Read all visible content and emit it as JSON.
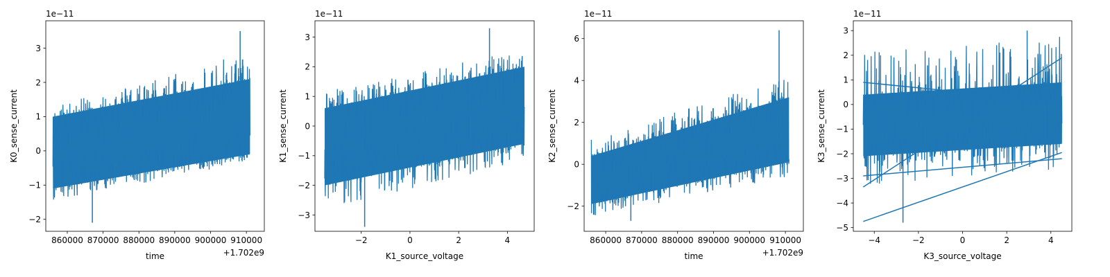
{
  "line_color": "#1f77b4",
  "chart_data": [
    {
      "type": "line",
      "title": "",
      "xlabel": "time",
      "ylabel": "K0_sense_current",
      "x_offset_text": "+1.702e9",
      "y_exponent_text": "1e−11",
      "xlim": [
        854000,
        915000
      ],
      "ylim": [
        -2.35,
        3.8
      ],
      "x_ticks": [
        860000,
        870000,
        880000,
        890000,
        900000,
        910000
      ],
      "x_tick_labels": [
        "860000",
        "870000",
        "880000",
        "890000",
        "900000",
        "910000"
      ],
      "y_ticks": [
        -2,
        -1,
        0,
        1,
        2,
        3
      ],
      "y_tick_labels": [
        "−2",
        "−1",
        "0",
        "1",
        "2",
        "3"
      ],
      "grid": false,
      "series": [
        {
          "x": [
            856000,
            911000
          ],
          "band_lower": [
            -1.1,
            -0.1
          ],
          "band_upper": [
            1.0,
            2.1
          ],
          "peak_lower": [
            -1.5,
            -0.3
          ],
          "peak_upper": [
            1.3,
            2.9
          ],
          "min_value": -2.1,
          "max_value": 3.5
        }
      ]
    },
    {
      "type": "line",
      "title": "",
      "xlabel": "K1_source_voltage",
      "ylabel": "K1_sense_current",
      "x_offset_text": "",
      "y_exponent_text": "1e−11",
      "xlim": [
        -3.9,
        5.1
      ],
      "ylim": [
        -3.55,
        3.55
      ],
      "x_ticks": [
        -2,
        0,
        2,
        4
      ],
      "x_tick_labels": [
        "−2",
        "0",
        "2",
        "4"
      ],
      "y_ticks": [
        -3,
        -2,
        -1,
        0,
        1,
        2,
        3
      ],
      "y_tick_labels": [
        "−3",
        "−2",
        "−1",
        "0",
        "1",
        "2",
        "3"
      ],
      "grid": false,
      "series": [
        {
          "x": [
            -3.5,
            4.7
          ],
          "band_lower": [
            -2.0,
            -0.6
          ],
          "band_upper": [
            0.6,
            2.0
          ],
          "peak_lower": [
            -2.8,
            -1.2
          ],
          "peak_upper": [
            1.2,
            2.6
          ],
          "min_value": -3.4,
          "max_value": 3.3
        }
      ]
    },
    {
      "type": "line",
      "title": "",
      "xlabel": "time",
      "ylabel": "K2_sense_current",
      "x_offset_text": "+1.702e9",
      "y_exponent_text": "1e−11",
      "xlim": [
        854000,
        915000
      ],
      "ylim": [
        -3.2,
        6.85
      ],
      "x_ticks": [
        860000,
        870000,
        880000,
        890000,
        900000,
        910000
      ],
      "x_tick_labels": [
        "860000",
        "870000",
        "880000",
        "890000",
        "900000",
        "910000"
      ],
      "y_ticks": [
        -2,
        0,
        2,
        4,
        6
      ],
      "y_tick_labels": [
        "−2",
        "0",
        "2",
        "4",
        "6"
      ],
      "grid": false,
      "series": [
        {
          "x": [
            856000,
            911000
          ],
          "band_lower": [
            -1.9,
            0.1
          ],
          "band_upper": [
            0.4,
            3.2
          ],
          "peak_lower": [
            -2.5,
            -0.6
          ],
          "peak_upper": [
            1.2,
            4.2
          ],
          "min_value": -2.7,
          "max_value": 6.4
        }
      ]
    },
    {
      "type": "line",
      "title": "",
      "xlabel": "K3_source_voltage",
      "ylabel": "K3_sense_current",
      "x_offset_text": "",
      "y_exponent_text": "1e−11",
      "xlim": [
        -4.95,
        4.95
      ],
      "ylim": [
        -5.15,
        3.4
      ],
      "x_ticks": [
        -4,
        -2,
        0,
        2,
        4
      ],
      "x_tick_labels": [
        "−4",
        "−2",
        "0",
        "2",
        "4"
      ],
      "y_ticks": [
        -5,
        -4,
        -3,
        -2,
        -1,
        0,
        1,
        2,
        3
      ],
      "y_tick_labels": [
        "−5",
        "−4",
        "−3",
        "−2",
        "−1",
        "0",
        "1",
        "2",
        "3"
      ],
      "grid": false,
      "series": [
        {
          "x": [
            -4.5,
            4.5
          ],
          "band_lower": [
            -2.1,
            -1.6
          ],
          "band_upper": [
            0.4,
            0.9
          ],
          "peak_lower": [
            -3.3,
            -2.6
          ],
          "peak_upper": [
            2.2,
            2.8
          ],
          "min_value": -4.8,
          "max_value": 3.0,
          "sweep_lines": [
            {
              "x": [
                -4.5,
                4.5
              ],
              "y": [
                -4.75,
                -1.95
              ]
            },
            {
              "x": [
                -4.5,
                4.5
              ],
              "y": [
                -3.35,
                1.9
              ]
            },
            {
              "x": [
                -4.5,
                4.5
              ],
              "y": [
                -2.9,
                -2.2
              ]
            },
            {
              "x": [
                -4.5,
                4.5
              ],
              "y": [
                0.9,
                0.1
              ]
            }
          ]
        }
      ]
    }
  ]
}
